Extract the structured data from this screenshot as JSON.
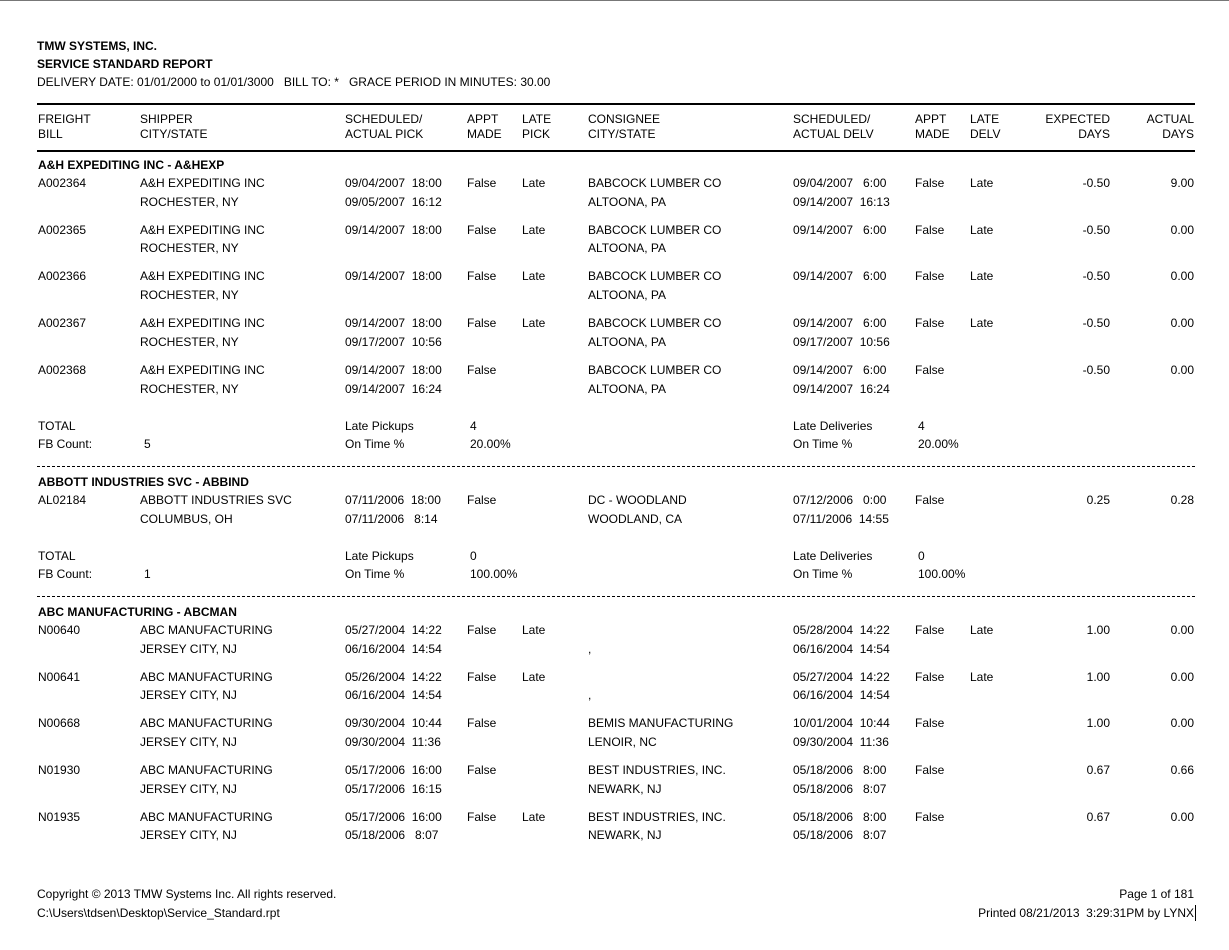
{
  "header": {
    "company": "TMW SYSTEMS, INC.",
    "report_title": "SERVICE STANDARD REPORT",
    "criteria": "DELIVERY DATE: 01/01/2000 to 01/01/3000   BILL TO: *   GRACE PERIOD IN MINUTES: 30.00"
  },
  "columns": [
    {
      "l1": "FREIGHT",
      "l2": "BILL"
    },
    {
      "l1": "SHIPPER",
      "l2": "CITY/STATE"
    },
    {
      "l1": "SCHEDULED/",
      "l2": "ACTUAL PICK"
    },
    {
      "l1": "APPT",
      "l2": "MADE"
    },
    {
      "l1": "LATE",
      "l2": "PICK"
    },
    {
      "l1": "CONSIGNEE",
      "l2": "CITY/STATE"
    },
    {
      "l1": "SCHEDULED/",
      "l2": "ACTUAL DELV"
    },
    {
      "l1": "APPT",
      "l2": "MADE"
    },
    {
      "l1": "LATE",
      "l2": "DELV"
    },
    {
      "l1": "EXPECTED",
      "l2": "DAYS"
    },
    {
      "l1": "ACTUAL",
      "l2": "DAYS"
    }
  ],
  "totals_labels": {
    "total": "TOTAL",
    "fb_count": "FB Count:",
    "late_pickups": "Late Pickups",
    "on_time": "On Time %",
    "late_deliveries": "Late Deliveries"
  },
  "groups": [
    {
      "title": "A&H EXPEDITING INC - A&HEXP",
      "records": [
        {
          "fb": "A002364",
          "shipper": "A&H EXPEDITING INC",
          "shipper_city": "ROCHESTER, NY",
          "sched_pick": "09/04/2007  18:00",
          "actual_pick": "09/05/2007  16:12",
          "appt_pick": "False",
          "late_pick": "Late",
          "consignee": "BABCOCK LUMBER CO",
          "consignee_city": "ALTOONA, PA",
          "sched_delv": "09/04/2007   6:00",
          "actual_delv": "09/14/2007  16:13",
          "appt_delv": "False",
          "late_delv": "Late",
          "expected": "-0.50",
          "actual": "9.00"
        },
        {
          "fb": "A002365",
          "shipper": "A&H EXPEDITING INC",
          "shipper_city": "ROCHESTER, NY",
          "sched_pick": "09/14/2007  18:00",
          "actual_pick": "",
          "appt_pick": "False",
          "late_pick": "Late",
          "consignee": "BABCOCK LUMBER CO",
          "consignee_city": "ALTOONA, PA",
          "sched_delv": "09/14/2007   6:00",
          "actual_delv": "",
          "appt_delv": "False",
          "late_delv": "Late",
          "expected": "-0.50",
          "actual": "0.00"
        },
        {
          "fb": "A002366",
          "shipper": "A&H EXPEDITING INC",
          "shipper_city": "ROCHESTER, NY",
          "sched_pick": "09/14/2007  18:00",
          "actual_pick": "",
          "appt_pick": "False",
          "late_pick": "Late",
          "consignee": "BABCOCK LUMBER CO",
          "consignee_city": "ALTOONA, PA",
          "sched_delv": "09/14/2007   6:00",
          "actual_delv": "",
          "appt_delv": "False",
          "late_delv": "Late",
          "expected": "-0.50",
          "actual": "0.00"
        },
        {
          "fb": "A002367",
          "shipper": "A&H EXPEDITING INC",
          "shipper_city": "ROCHESTER, NY",
          "sched_pick": "09/14/2007  18:00",
          "actual_pick": "09/17/2007  10:56",
          "appt_pick": "False",
          "late_pick": "Late",
          "consignee": "BABCOCK LUMBER CO",
          "consignee_city": "ALTOONA, PA",
          "sched_delv": "09/14/2007   6:00",
          "actual_delv": "09/17/2007  10:56",
          "appt_delv": "False",
          "late_delv": "Late",
          "expected": "-0.50",
          "actual": "0.00"
        },
        {
          "fb": "A002368",
          "shipper": "A&H EXPEDITING INC",
          "shipper_city": "ROCHESTER, NY",
          "sched_pick": "09/14/2007  18:00",
          "actual_pick": "09/14/2007  16:24",
          "appt_pick": "False",
          "late_pick": "",
          "consignee": "BABCOCK LUMBER CO",
          "consignee_city": "ALTOONA, PA",
          "sched_delv": "09/14/2007   6:00",
          "actual_delv": "09/14/2007  16:24",
          "appt_delv": "False",
          "late_delv": "",
          "expected": "-0.50",
          "actual": "0.00"
        }
      ],
      "totals": {
        "fb_count": "5",
        "late_pickups": "4",
        "pick_on_time": "20.00%",
        "late_deliveries": "4",
        "delv_on_time": "20.00%"
      }
    },
    {
      "title": "ABBOTT INDUSTRIES SVC - ABBIND",
      "records": [
        {
          "fb": "AL02184",
          "shipper": "ABBOTT INDUSTRIES SVC",
          "shipper_city": "COLUMBUS, OH",
          "sched_pick": "07/11/2006  18:00",
          "actual_pick": "07/11/2006   8:14",
          "appt_pick": "False",
          "late_pick": "",
          "consignee": "DC - WOODLAND",
          "consignee_city": "WOODLAND, CA",
          "sched_delv": "07/12/2006   0:00",
          "actual_delv": "07/11/2006  14:55",
          "appt_delv": "False",
          "late_delv": "",
          "expected": "0.25",
          "actual": "0.28"
        }
      ],
      "totals": {
        "fb_count": "1",
        "late_pickups": "0",
        "pick_on_time": "100.00%",
        "late_deliveries": "0",
        "delv_on_time": "100.00%"
      }
    },
    {
      "title": "ABC MANUFACTURING - ABCMAN",
      "records": [
        {
          "fb": "N00640",
          "shipper": "ABC MANUFACTURING",
          "shipper_city": "JERSEY CITY, NJ",
          "sched_pick": "05/27/2004  14:22",
          "actual_pick": "06/16/2004  14:54",
          "appt_pick": "False",
          "late_pick": "Late",
          "consignee": "",
          "consignee_city": ",",
          "sched_delv": "05/28/2004  14:22",
          "actual_delv": "06/16/2004  14:54",
          "appt_delv": "False",
          "late_delv": "Late",
          "expected": "1.00",
          "actual": "0.00"
        },
        {
          "fb": "N00641",
          "shipper": "ABC MANUFACTURING",
          "shipper_city": "JERSEY CITY, NJ",
          "sched_pick": "05/26/2004  14:22",
          "actual_pick": "06/16/2004  14:54",
          "appt_pick": "False",
          "late_pick": "Late",
          "consignee": "",
          "consignee_city": ",",
          "sched_delv": "05/27/2004  14:22",
          "actual_delv": "06/16/2004  14:54",
          "appt_delv": "False",
          "late_delv": "Late",
          "expected": "1.00",
          "actual": "0.00"
        },
        {
          "fb": "N00668",
          "shipper": "ABC MANUFACTURING",
          "shipper_city": "JERSEY CITY, NJ",
          "sched_pick": "09/30/2004  10:44",
          "actual_pick": "09/30/2004  11:36",
          "appt_pick": "False",
          "late_pick": "",
          "consignee": "BEMIS MANUFACTURING",
          "consignee_city": "LENOIR, NC",
          "sched_delv": "10/01/2004  10:44",
          "actual_delv": "09/30/2004  11:36",
          "appt_delv": "False",
          "late_delv": "",
          "expected": "1.00",
          "actual": "0.00"
        },
        {
          "fb": "N01930",
          "shipper": "ABC MANUFACTURING",
          "shipper_city": "JERSEY CITY, NJ",
          "sched_pick": "05/17/2006  16:00",
          "actual_pick": "05/17/2006  16:15",
          "appt_pick": "False",
          "late_pick": "",
          "consignee": "BEST INDUSTRIES, INC.",
          "consignee_city": "NEWARK, NJ",
          "sched_delv": "05/18/2006   8:00",
          "actual_delv": "05/18/2006   8:07",
          "appt_delv": "False",
          "late_delv": "",
          "expected": "0.67",
          "actual": "0.66"
        },
        {
          "fb": "N01935",
          "shipper": "ABC MANUFACTURING",
          "shipper_city": "JERSEY CITY, NJ",
          "sched_pick": "05/17/2006  16:00",
          "actual_pick": "05/18/2006   8:07",
          "appt_pick": "False",
          "late_pick": "Late",
          "consignee": "BEST INDUSTRIES, INC.",
          "consignee_city": "NEWARK, NJ",
          "sched_delv": "05/18/2006   8:00",
          "actual_delv": "05/18/2006   8:07",
          "appt_delv": "False",
          "late_delv": "",
          "expected": "0.67",
          "actual": "0.00"
        }
      ]
    }
  ],
  "footer": {
    "copyright": "Copyright © 2013 TMW Systems Inc. All rights reserved.",
    "file_path": "C:\\Users\\tdsen\\Desktop\\Service_Standard.rpt",
    "page": "Page 1 of 181",
    "printed": "Printed 08/21/2013  3:29:31PM by LYNX"
  }
}
